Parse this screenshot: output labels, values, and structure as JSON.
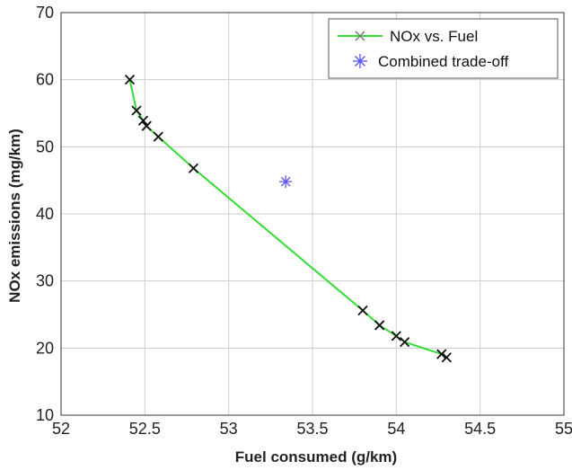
{
  "chart_data": {
    "type": "line",
    "xlabel": "Fuel consumed (g/km)",
    "ylabel": "NOx emissions (mg/km)",
    "xlim": [
      52,
      55
    ],
    "ylim": [
      10,
      70
    ],
    "xticks": [
      "52",
      "52.5",
      "53",
      "53.5",
      "54",
      "54.5",
      "55"
    ],
    "yticks": [
      "10",
      "20",
      "30",
      "40",
      "50",
      "60",
      "70"
    ],
    "grid": true,
    "legend_position": "top-right",
    "series": [
      {
        "name": "NOx vs. Fuel",
        "color": "#33dd33",
        "marker": "x",
        "marker_color": "#111111",
        "points": [
          [
            52.41,
            60.0
          ],
          [
            52.45,
            55.4
          ],
          [
            52.49,
            53.9
          ],
          [
            52.51,
            53.1
          ],
          [
            52.58,
            51.5
          ],
          [
            52.79,
            46.8
          ],
          [
            53.8,
            25.6
          ],
          [
            53.9,
            23.4
          ],
          [
            54.0,
            21.8
          ],
          [
            54.05,
            20.9
          ],
          [
            54.27,
            19.1
          ],
          [
            54.3,
            18.6
          ]
        ]
      },
      {
        "name": "Combined trade-off",
        "color": "#5555ee",
        "marker": "asterisk",
        "points": [
          [
            53.34,
            44.8
          ]
        ]
      }
    ]
  }
}
